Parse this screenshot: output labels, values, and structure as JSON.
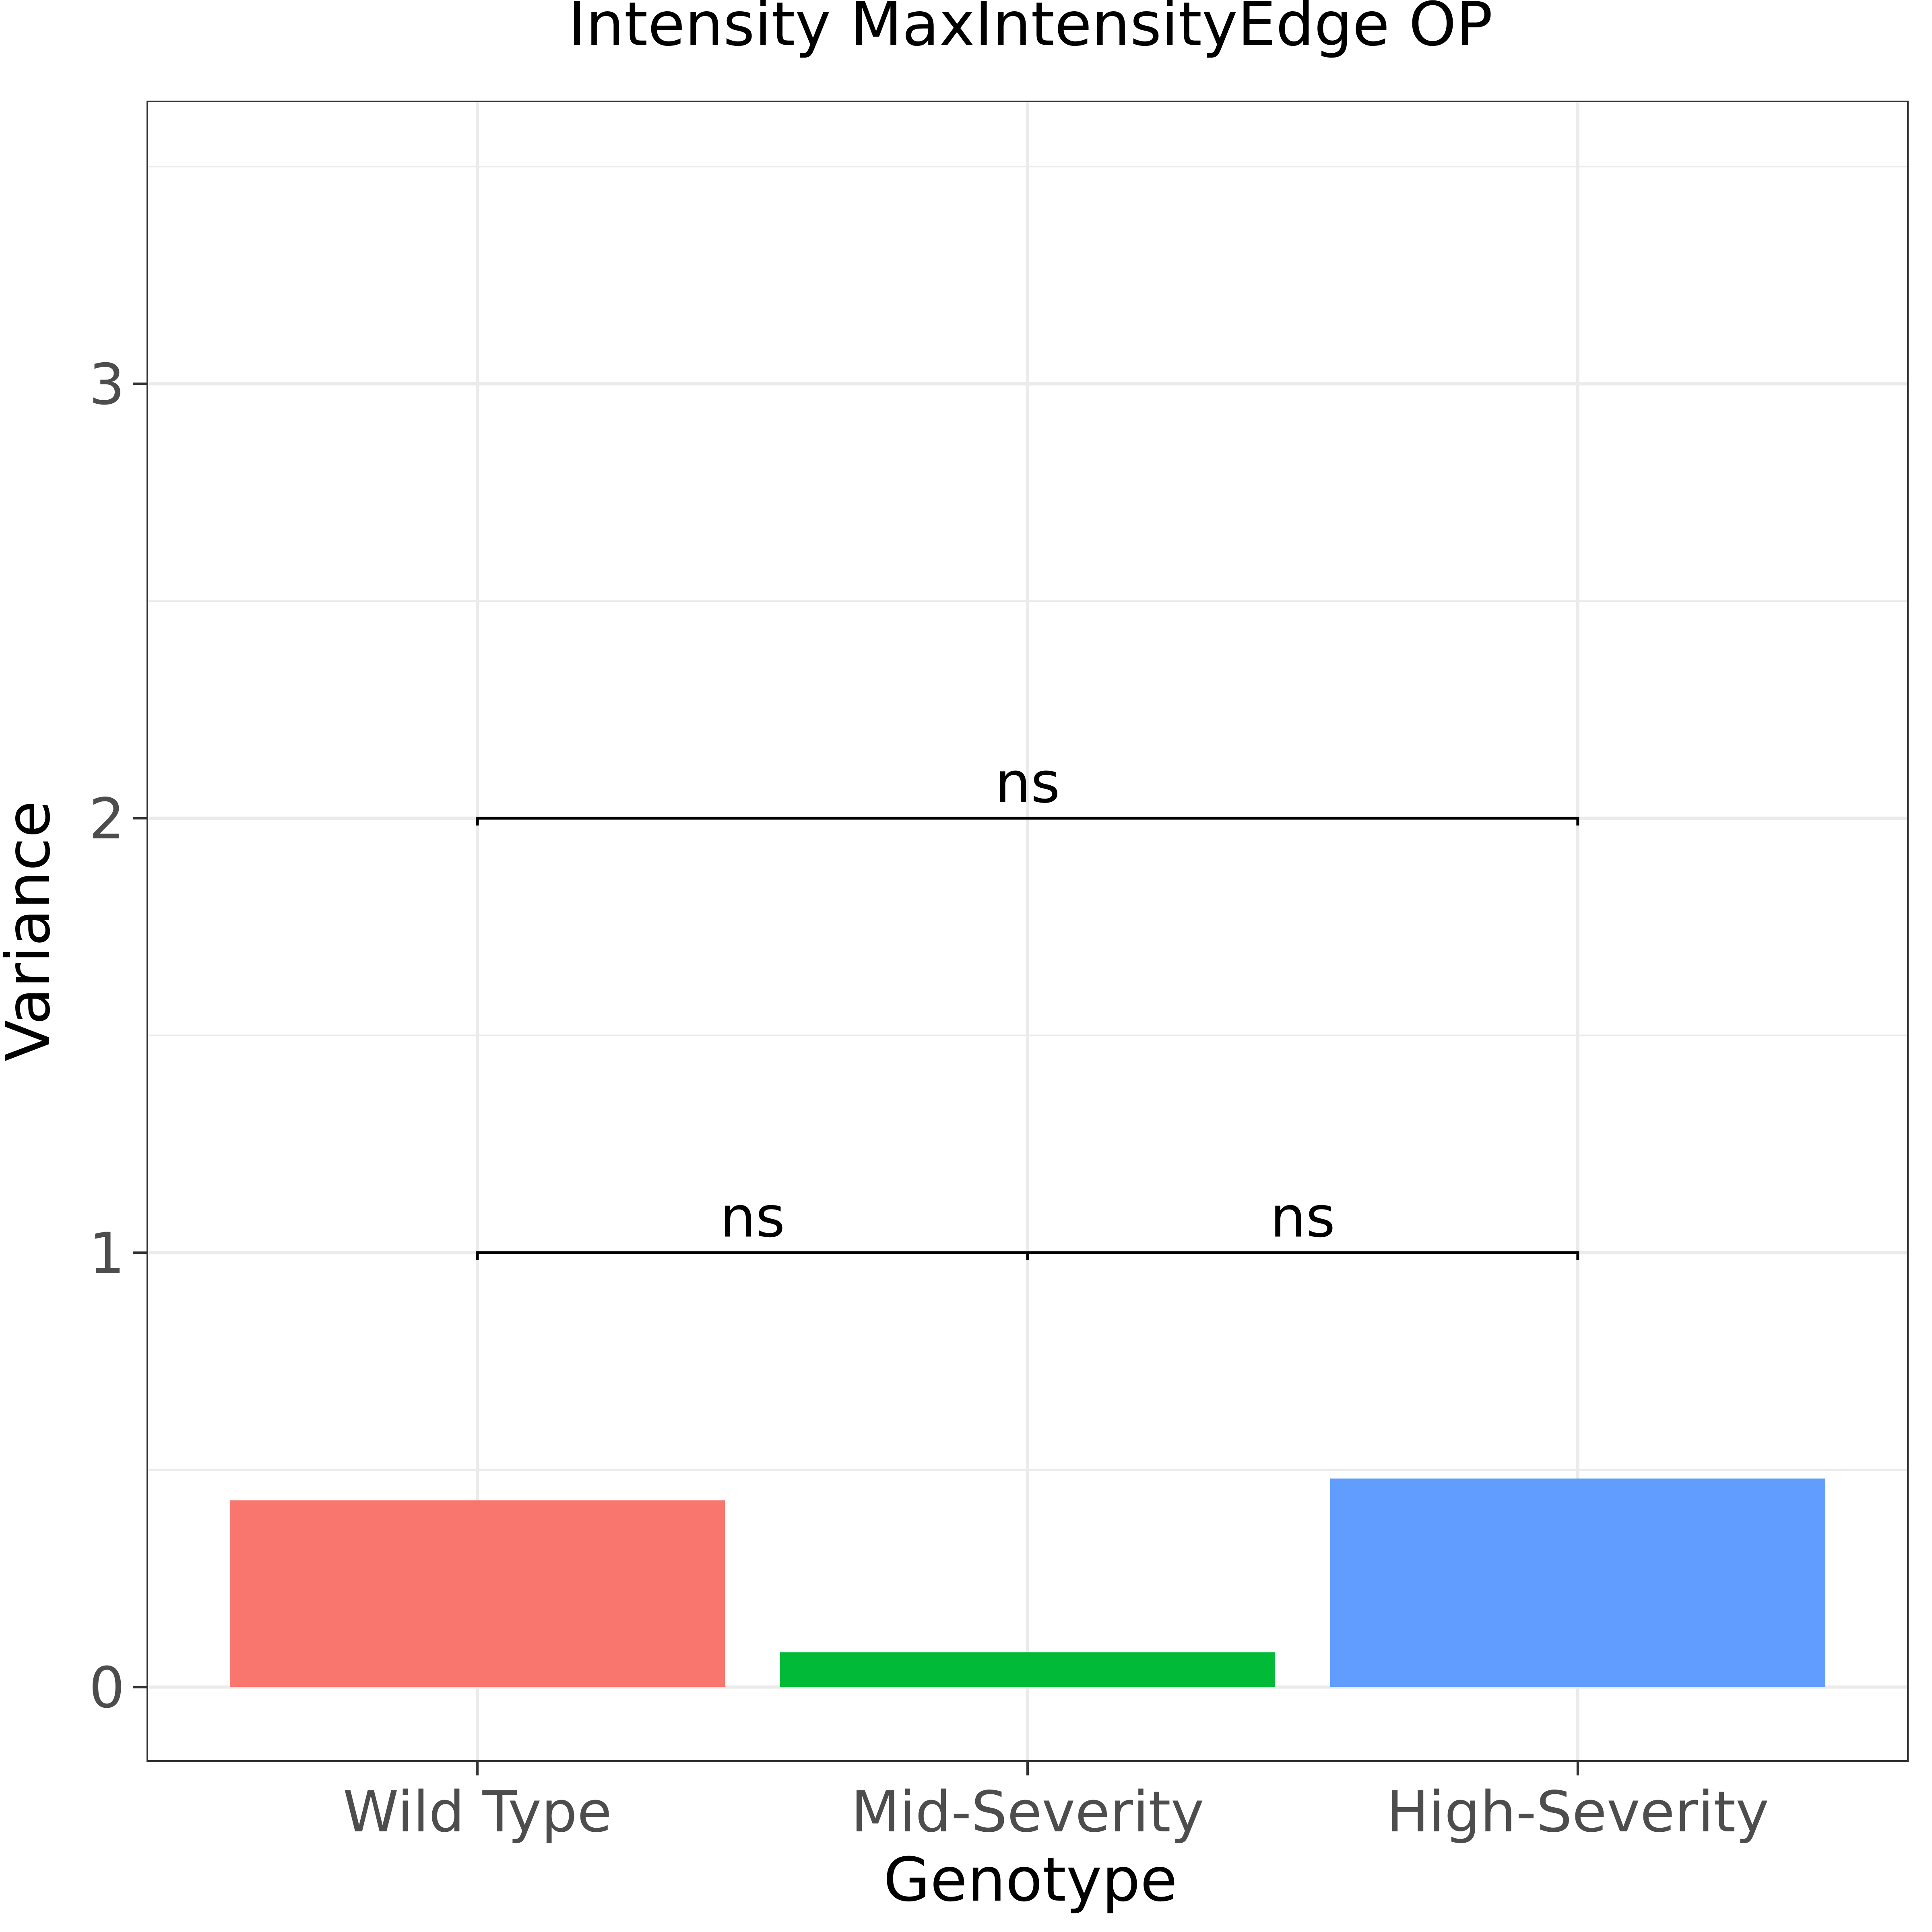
{
  "chart_data": {
    "type": "bar",
    "title": "Intensity MaxIntensityEdge OP",
    "xlabel": "Genotype",
    "ylabel": "Variance",
    "categories": [
      "Wild Type",
      "Mid-Severity",
      "High-Severity"
    ],
    "values": [
      0.43,
      0.08,
      0.48
    ],
    "colors": [
      "#f8766d",
      "#00ba38",
      "#619cff"
    ],
    "ylim": [
      -0.17,
      3.65
    ],
    "yticks": [
      0,
      1,
      2,
      3
    ],
    "grid": true,
    "legend": "none",
    "comparisons": [
      {
        "from": "Wild Type",
        "to": "Mid-Severity",
        "y": 1,
        "label": "ns"
      },
      {
        "from": "Mid-Severity",
        "to": "High-Severity",
        "y": 1,
        "label": "ns"
      },
      {
        "from": "Wild Type",
        "to": "High-Severity",
        "y": 2,
        "label": "ns"
      }
    ]
  }
}
